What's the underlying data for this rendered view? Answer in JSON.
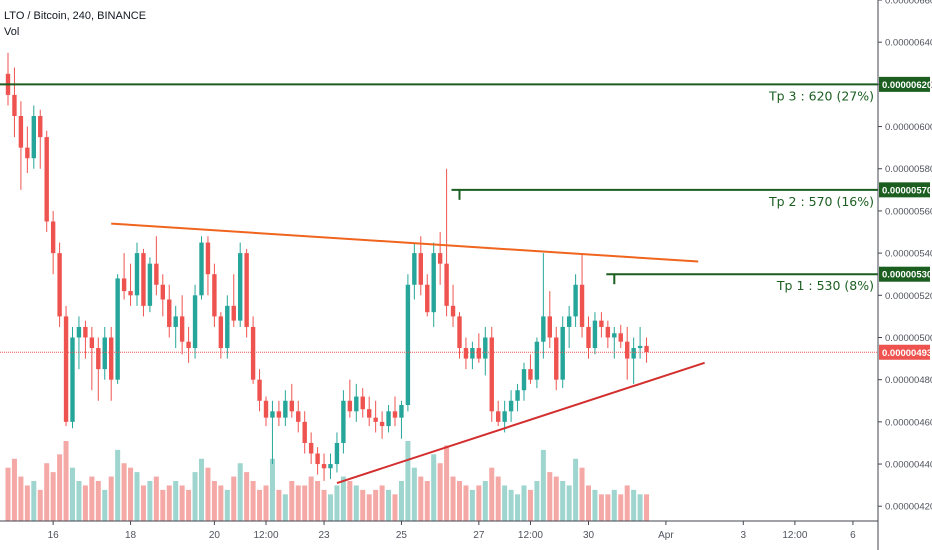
{
  "header": {
    "symbol_line": "LTO / Bitcoin, 240, BINANCE",
    "volume_label": "Vol"
  },
  "colors": {
    "up": "#26a69a",
    "down": "#ef5350",
    "vol_up": "#9ed5cf",
    "vol_down": "#f5a9a6",
    "target": "#1b5e20",
    "resistance": "#f0641e",
    "support": "#d32f2f",
    "price_line": "#ef5350",
    "axis_text": "#50535e",
    "axis_line": "#434651"
  },
  "chart_data": {
    "type": "candlestick",
    "ylim": [
      4.13e-06,
      6.6e-06
    ],
    "y_ticks": [
      "0.00000660",
      "0.00000640",
      "0.00000620",
      "0.00000600",
      "0.00000580",
      "0.00000560",
      "0.00000540",
      "0.00000520",
      "0.00000500",
      "0.00000480",
      "0.00000460",
      "0.00000440",
      "0.00000420"
    ],
    "y_tick_values": [
      660,
      640,
      620,
      600,
      580,
      560,
      540,
      520,
      500,
      480,
      460,
      440,
      420
    ],
    "x_ticks": [
      "16",
      "18",
      "20",
      "12:00",
      "23",
      "25",
      "27",
      "12:00",
      "30",
      "Apr",
      "3",
      "12:00",
      "6"
    ],
    "x_tick_bars": [
      7,
      19,
      32,
      40,
      49,
      61,
      73,
      81,
      90,
      102,
      114,
      122,
      131
    ],
    "current_price": "0.00000493",
    "current_value": 493,
    "targets": [
      {
        "label": "Tp 3 : 620 (27%)",
        "badge": "0.00000620",
        "value": 620
      },
      {
        "label": "Tp 2 : 570 (16%)",
        "badge": "0.00000570",
        "value": 570
      },
      {
        "label": "Tp 1 : 530 (8%)",
        "badge": "0.00000530",
        "value": 530
      }
    ],
    "target_starts": [
      0,
      70,
      94
    ],
    "resistance_line": {
      "from": [
        16,
        554
      ],
      "to": [
        107,
        536
      ]
    },
    "support_line": {
      "from": [
        51,
        431
      ],
      "to": [
        108,
        488
      ]
    },
    "candles": [
      [
        625,
        635,
        610,
        615,
        12
      ],
      [
        615,
        628,
        595,
        605,
        14
      ],
      [
        605,
        612,
        570,
        590,
        10
      ],
      [
        590,
        600,
        578,
        585,
        8
      ],
      [
        585,
        610,
        580,
        605,
        9
      ],
      [
        605,
        608,
        580,
        595,
        7
      ],
      [
        595,
        598,
        550,
        555,
        13
      ],
      [
        555,
        560,
        530,
        540,
        11
      ],
      [
        540,
        545,
        505,
        510,
        15
      ],
      [
        510,
        515,
        458,
        460,
        18
      ],
      [
        460,
        505,
        457,
        500,
        12
      ],
      [
        500,
        510,
        485,
        505,
        9
      ],
      [
        505,
        508,
        490,
        500,
        8
      ],
      [
        500,
        505,
        475,
        495,
        10
      ],
      [
        495,
        500,
        470,
        485,
        9
      ],
      [
        485,
        505,
        480,
        500,
        7
      ],
      [
        500,
        505,
        470,
        480,
        10
      ],
      [
        480,
        530,
        478,
        528,
        16
      ],
      [
        528,
        540,
        518,
        522,
        13
      ],
      [
        522,
        535,
        515,
        520,
        12
      ],
      [
        520,
        545,
        515,
        540,
        11
      ],
      [
        540,
        542,
        510,
        515,
        8
      ],
      [
        515,
        538,
        512,
        535,
        9
      ],
      [
        535,
        548,
        520,
        525,
        10
      ],
      [
        525,
        530,
        510,
        518,
        7
      ],
      [
        518,
        525,
        500,
        505,
        8
      ],
      [
        505,
        515,
        495,
        510,
        9
      ],
      [
        510,
        520,
        492,
        498,
        8
      ],
      [
        498,
        505,
        488,
        495,
        7
      ],
      [
        495,
        525,
        490,
        520,
        11
      ],
      [
        520,
        548,
        518,
        545,
        14
      ],
      [
        545,
        548,
        520,
        530,
        12
      ],
      [
        530,
        535,
        505,
        510,
        9
      ],
      [
        510,
        512,
        490,
        495,
        8
      ],
      [
        495,
        520,
        490,
        515,
        7
      ],
      [
        515,
        530,
        505,
        508,
        10
      ],
      [
        508,
        545,
        505,
        540,
        13
      ],
      [
        540,
        542,
        500,
        505,
        11
      ],
      [
        505,
        510,
        478,
        480,
        9
      ],
      [
        480,
        485,
        465,
        470,
        7
      ],
      [
        470,
        472,
        458,
        462,
        8
      ],
      [
        462,
        470,
        440,
        465,
        14
      ],
      [
        465,
        470,
        458,
        462,
        7
      ],
      [
        462,
        475,
        458,
        470,
        6
      ],
      [
        470,
        478,
        462,
        465,
        9
      ],
      [
        465,
        470,
        455,
        460,
        8
      ],
      [
        460,
        465,
        445,
        450,
        8
      ],
      [
        450,
        455,
        440,
        445,
        10
      ],
      [
        445,
        448,
        435,
        440,
        9
      ],
      [
        440,
        445,
        432,
        438,
        7
      ],
      [
        438,
        445,
        433,
        440,
        6
      ],
      [
        440,
        455,
        436,
        450,
        8
      ],
      [
        450,
        475,
        445,
        470,
        10
      ],
      [
        470,
        480,
        462,
        465,
        9
      ],
      [
        465,
        478,
        460,
        472,
        8
      ],
      [
        472,
        476,
        462,
        466,
        7
      ],
      [
        466,
        472,
        458,
        462,
        6
      ],
      [
        462,
        470,
        455,
        460,
        7
      ],
      [
        460,
        465,
        452,
        458,
        8
      ],
      [
        458,
        468,
        455,
        465,
        7
      ],
      [
        465,
        472,
        458,
        462,
        6
      ],
      [
        462,
        470,
        452,
        468,
        9
      ],
      [
        468,
        530,
        465,
        525,
        18
      ],
      [
        525,
        545,
        518,
        540,
        12
      ],
      [
        540,
        548,
        520,
        525,
        10
      ],
      [
        525,
        530,
        510,
        512,
        9
      ],
      [
        512,
        545,
        505,
        540,
        15
      ],
      [
        540,
        550,
        525,
        535,
        13
      ],
      [
        535,
        580,
        510,
        515,
        17
      ],
      [
        515,
        525,
        505,
        510,
        10
      ],
      [
        510,
        512,
        490,
        495,
        9
      ],
      [
        495,
        500,
        485,
        490,
        8
      ],
      [
        490,
        498,
        485,
        495,
        7
      ],
      [
        495,
        502,
        488,
        490,
        8
      ],
      [
        490,
        505,
        482,
        500,
        9
      ],
      [
        500,
        505,
        460,
        465,
        12
      ],
      [
        465,
        470,
        458,
        460,
        10
      ],
      [
        460,
        470,
        455,
        465,
        8
      ],
      [
        465,
        475,
        460,
        470,
        7
      ],
      [
        470,
        478,
        465,
        475,
        6
      ],
      [
        475,
        488,
        470,
        485,
        8
      ],
      [
        485,
        492,
        478,
        480,
        7
      ],
      [
        480,
        500,
        476,
        498,
        9
      ],
      [
        498,
        540,
        490,
        510,
        16
      ],
      [
        510,
        522,
        495,
        500,
        11
      ],
      [
        500,
        505,
        475,
        480,
        10
      ],
      [
        480,
        510,
        476,
        505,
        9
      ],
      [
        505,
        515,
        495,
        510,
        8
      ],
      [
        510,
        530,
        505,
        525,
        14
      ],
      [
        525,
        540,
        500,
        505,
        12
      ],
      [
        505,
        510,
        490,
        495,
        8
      ],
      [
        495,
        512,
        492,
        508,
        7
      ],
      [
        508,
        512,
        500,
        505,
        6
      ],
      [
        505,
        508,
        495,
        500,
        6
      ],
      [
        500,
        505,
        490,
        502,
        7
      ],
      [
        502,
        506,
        495,
        498,
        6
      ],
      [
        498,
        505,
        480,
        490,
        8
      ],
      [
        490,
        500,
        478,
        495,
        7
      ],
      [
        495,
        505,
        490,
        496,
        6
      ],
      [
        496,
        500,
        488,
        493,
        6
      ]
    ]
  }
}
